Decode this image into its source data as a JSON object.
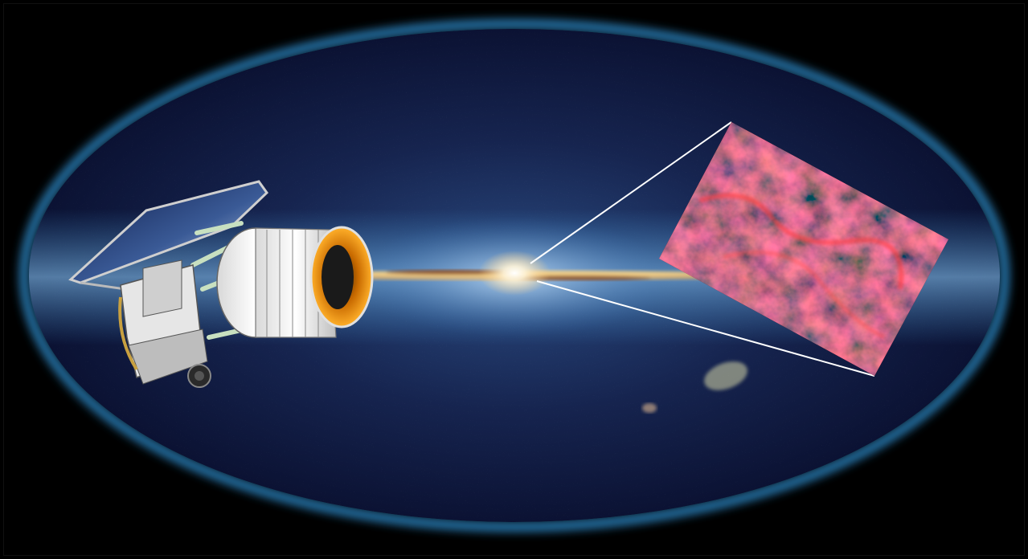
{
  "scene": {
    "subject": "all-sky-infrared-map-with-space-telescope",
    "colors": {
      "background": "#000000",
      "sky_deep": "#0a0f2e",
      "sky_mid": "#1a3260",
      "sky_glow": "#4aa8e8",
      "rim": "#2e8fd0",
      "galactic_plane": "#e8b060",
      "core": "#ffffff",
      "nebula": "#c01818",
      "aperture": "#f08a10",
      "solar_panel": "#1c2f6a"
    },
    "icons": [
      "telescope-icon",
      "solar-panel-icon",
      "galaxy-core-icon",
      "nebula-inset-icon"
    ]
  }
}
